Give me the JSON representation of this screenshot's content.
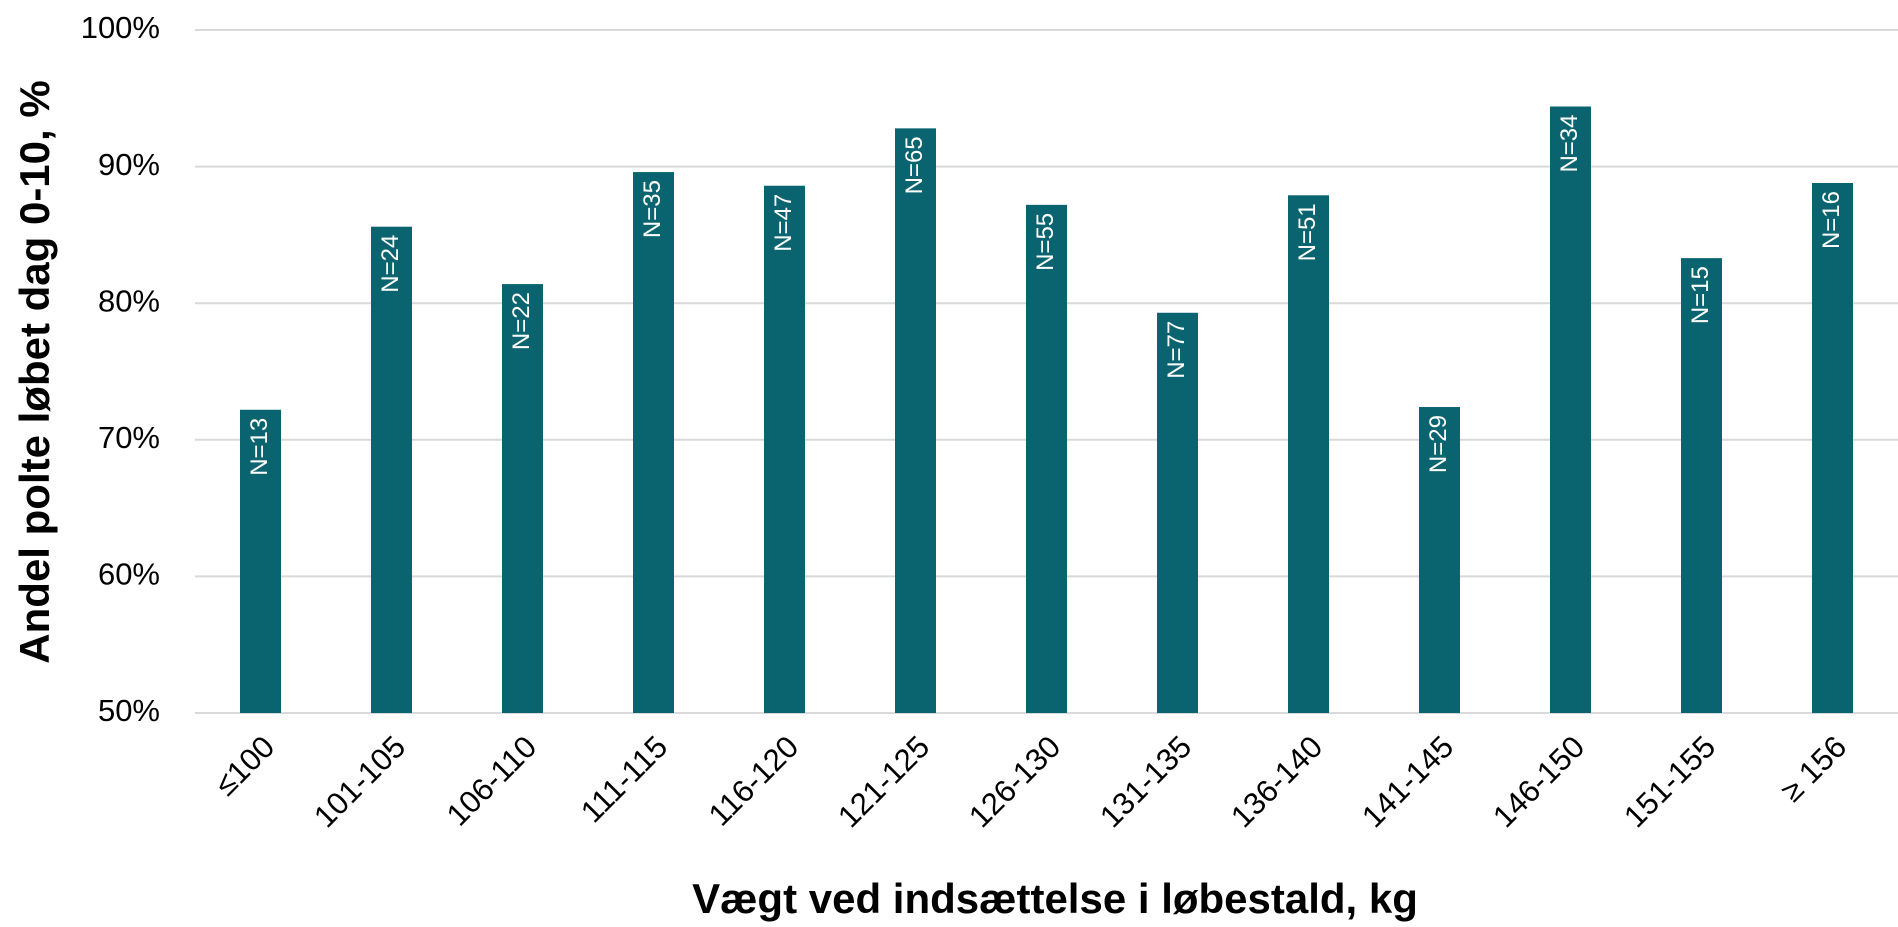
{
  "chart_data": {
    "type": "bar",
    "x_label": "Vægt ved indsættelse i løbestald, kg",
    "y_label": "Andel polte løbet dag 0-10, %",
    "categories": [
      "≤100",
      "101-105",
      "106-110",
      "111-115",
      "116-120",
      "121-125",
      "126-130",
      "131-135",
      "136-140",
      "141-145",
      "146-150",
      "151-155",
      "≥ 156"
    ],
    "values": [
      72.2,
      85.6,
      81.4,
      89.6,
      88.6,
      92.8,
      87.2,
      79.3,
      87.9,
      72.4,
      94.4,
      83.3,
      88.8
    ],
    "annotations": [
      "N=13",
      "N=24",
      "N=22",
      "N=35",
      "N=47",
      "N=65",
      "N=55",
      "N=77",
      "N=51",
      "N=29",
      "N=34",
      "N=15",
      "N=16"
    ],
    "color": "#0a6470",
    "ylim": [
      50,
      100
    ],
    "yticks": [
      {
        "value": 50,
        "label": "50%"
      },
      {
        "value": 60,
        "label": "60%"
      },
      {
        "value": 70,
        "label": "70%"
      },
      {
        "value": 80,
        "label": "80%"
      },
      {
        "value": 90,
        "label": "90%"
      },
      {
        "value": 100,
        "label": "100%"
      }
    ],
    "grid": true
  }
}
